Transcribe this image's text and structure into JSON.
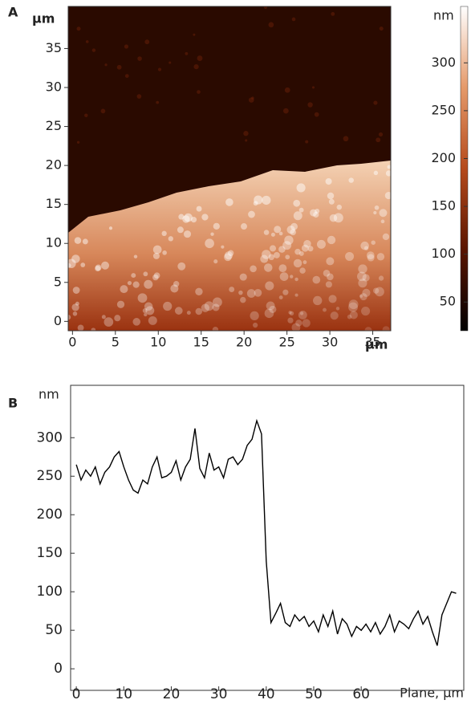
{
  "chart_data": [
    {
      "type": "image",
      "panel_label": "A",
      "x_label": "µm",
      "y_label": "µm",
      "xlim": [
        -0.5,
        37.1
      ],
      "ylim": [
        -1.2,
        40.4
      ],
      "xticks": [
        0,
        5,
        10,
        15,
        20,
        25,
        30,
        35
      ],
      "yticks": [
        0,
        5,
        10,
        15,
        20,
        25,
        30,
        35
      ],
      "colorbar": {
        "label": "nm",
        "lim": [
          20,
          359
        ],
        "ticks": [
          50,
          100,
          150,
          200,
          250,
          300
        ],
        "colors": [
          "#000000",
          "#5a1500",
          "#b54a1c",
          "#e59a6a",
          "#ffffff"
        ]
      }
    },
    {
      "type": "line",
      "panel_label": "B",
      "x_label": "Plane, µm",
      "y_label": "nm",
      "color": "#000000",
      "xlim": [
        -1.2,
        81.6
      ],
      "ylim": [
        -28,
        368
      ],
      "xticks": [
        0,
        10,
        20,
        30,
        40,
        50,
        60
      ],
      "yticks": [
        0,
        50,
        100,
        150,
        200,
        250,
        300
      ],
      "x": [
        0,
        1,
        2,
        3,
        4,
        5,
        6,
        7,
        8,
        9,
        10,
        11,
        12,
        13,
        14,
        15,
        16,
        17,
        18,
        19,
        20,
        21,
        22,
        23,
        24,
        25,
        26,
        27,
        28,
        29,
        30,
        31,
        32,
        33,
        34,
        35,
        36,
        37,
        38,
        39,
        40,
        41,
        42,
        43,
        44,
        45,
        46,
        47,
        48,
        49,
        50,
        51,
        52,
        53,
        54,
        55,
        56,
        57,
        58,
        59,
        60,
        61,
        62,
        63,
        64,
        65,
        66,
        67,
        68,
        69,
        70,
        71,
        72,
        73,
        74,
        75,
        76,
        77,
        78,
        79,
        80
      ],
      "values": [
        265,
        245,
        258,
        250,
        262,
        240,
        255,
        262,
        275,
        282,
        262,
        245,
        232,
        228,
        245,
        240,
        262,
        275,
        248,
        250,
        255,
        270,
        245,
        262,
        272,
        312,
        260,
        248,
        280,
        258,
        262,
        248,
        272,
        275,
        265,
        272,
        290,
        298,
        322,
        305,
        140,
        60,
        72,
        85,
        60,
        55,
        70,
        62,
        68,
        55,
        62,
        48,
        70,
        55,
        75,
        45,
        65,
        58,
        42,
        55,
        50,
        58,
        48,
        60,
        45,
        55,
        70,
        48,
        62,
        58,
        52,
        65,
        75,
        58,
        68,
        48,
        30,
        70,
        85,
        100,
        98
      ]
    }
  ]
}
